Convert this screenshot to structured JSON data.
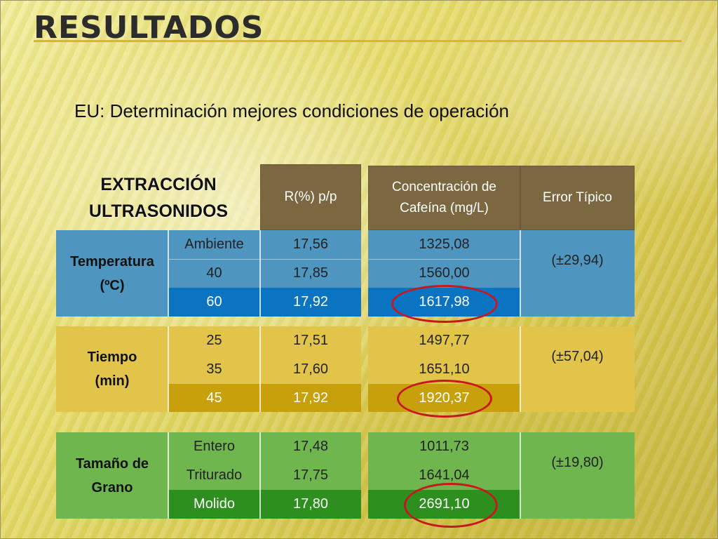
{
  "title": "RESULTADOS",
  "subtitle": "EU: Determinación mejores condiciones de operación",
  "table": {
    "heading_line1": "EXTRACCIÓN",
    "heading_line2": "ULTRASONIDOS",
    "col_r": "R(%) p/p",
    "col_conc_line1": "Concentración de",
    "col_conc_line2": "Cafeína (mg/L)",
    "col_error": "Error Típico",
    "temperatura": {
      "label_line1": "Temperatura",
      "label_line2": "(ºC)",
      "rows": [
        {
          "cond": "Ambiente",
          "r": "17,56",
          "conc": "1325,08"
        },
        {
          "cond": "40",
          "r": "17,85",
          "conc": "1560,00"
        },
        {
          "cond": "60",
          "r": "17,92",
          "conc": "1617,98"
        }
      ],
      "error": "(±29,94)"
    },
    "tiempo": {
      "label_line1": "Tiempo",
      "label_line2": "(min)",
      "rows": [
        {
          "cond": "25",
          "r": "17,51",
          "conc": "1497,77"
        },
        {
          "cond": "35",
          "r": "17,60",
          "conc": "1651,10"
        },
        {
          "cond": "45",
          "r": "17,92",
          "conc": "1920,37"
        }
      ],
      "error": "(±57,04)"
    },
    "grano": {
      "label_line1": "Tamaño de",
      "label_line2": "Grano",
      "rows": [
        {
          "cond": "Entero",
          "r": "17,48",
          "conc": "1011,73"
        },
        {
          "cond": "Triturado",
          "r": "17,75",
          "conc": "1641,04"
        },
        {
          "cond": "Molido",
          "r": "17,80",
          "conc": "2691,10"
        }
      ],
      "error": "(±19,80)"
    }
  },
  "colors": {
    "temperatura": "#4e95c0",
    "tiempo": "#e2c44a",
    "grano": "#6fb64e",
    "header": "#7b6840",
    "highlight_circle": "#c8181f"
  }
}
